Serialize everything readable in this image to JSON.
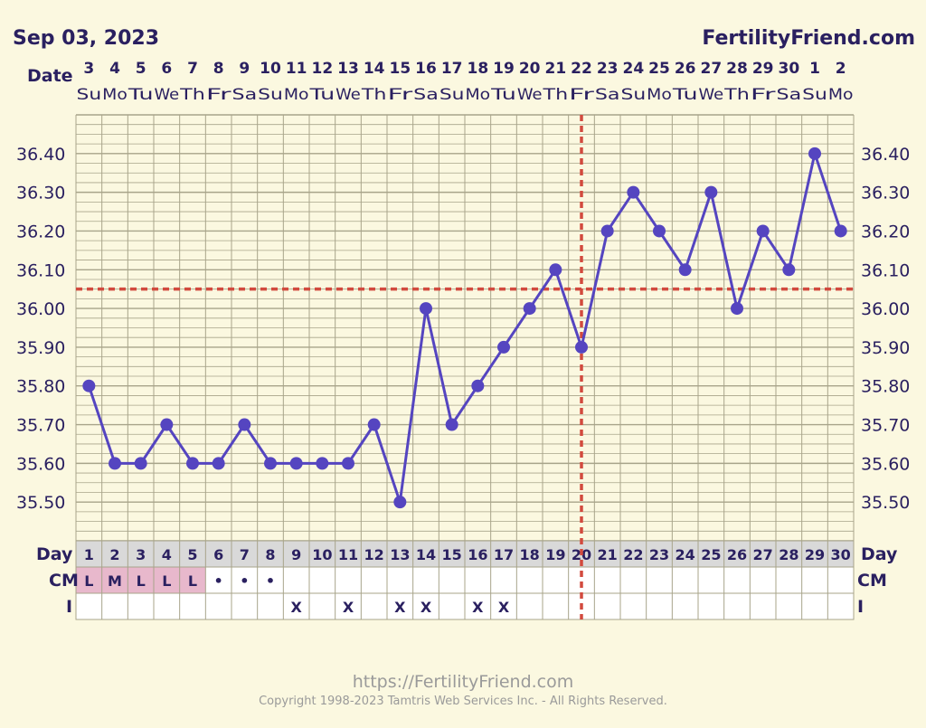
{
  "header": {
    "date_title": "Sep 03, 2023",
    "brand": "FertilityFriend.com",
    "date_row_label": "Date"
  },
  "footer": {
    "url": "https://FertilityFriend.com",
    "copyright": "Copyright 1998-2023 Tamtris Web Services Inc. - All Rights Reserved."
  },
  "row_labels": {
    "day": "Day",
    "cm": "CM",
    "i": "I"
  },
  "colors": {
    "background": "#fbf8e0",
    "line": "#5545c0",
    "coverline": "#d24a3e",
    "grid": "#a8a48a",
    "text": "#2a2060",
    "cm_highlight": "#e8b8cc"
  },
  "chart_data": {
    "type": "line",
    "title": "",
    "xlabel": "",
    "ylabel": "",
    "ylim": [
      35.4,
      36.5
    ],
    "yticks": [
      "35.50",
      "35.60",
      "35.70",
      "35.80",
      "35.90",
      "36.00",
      "36.10",
      "36.20",
      "36.30",
      "36.40"
    ],
    "grid": true,
    "legend": "none",
    "dates": [
      "3",
      "4",
      "5",
      "6",
      "7",
      "8",
      "9",
      "10",
      "11",
      "12",
      "13",
      "14",
      "15",
      "16",
      "17",
      "18",
      "19",
      "20",
      "21",
      "22",
      "23",
      "24",
      "25",
      "26",
      "27",
      "28",
      "29",
      "30",
      "1",
      "2"
    ],
    "weekdays": [
      "Su",
      "Mo",
      "Tu",
      "We",
      "Th",
      "Fr",
      "Sa",
      "Su",
      "Mo",
      "Tu",
      "We",
      "Th",
      "Fr",
      "Sa",
      "Su",
      "Mo",
      "Tu",
      "We",
      "Th",
      "Fr",
      "Sa",
      "Su",
      "Mo",
      "Tu",
      "We",
      "Th",
      "Fr",
      "Sa",
      "Su",
      "Mo"
    ],
    "cycle_days": [
      "1",
      "2",
      "3",
      "4",
      "5",
      "6",
      "7",
      "8",
      "9",
      "10",
      "11",
      "12",
      "13",
      "14",
      "15",
      "16",
      "17",
      "18",
      "19",
      "20",
      "21",
      "22",
      "23",
      "24",
      "25",
      "26",
      "27",
      "28",
      "29",
      "30"
    ],
    "series": [
      {
        "values": [
          35.8,
          35.6,
          35.6,
          35.7,
          35.6,
          35.6,
          35.7,
          35.6,
          35.6,
          35.6,
          35.6,
          35.7,
          35.5,
          36.0,
          35.7,
          35.8,
          35.9,
          36.0,
          36.1,
          35.9,
          36.2,
          36.3,
          36.2,
          36.1,
          36.3,
          36.0,
          36.2,
          36.1,
          36.4,
          36.2
        ]
      }
    ],
    "coverline": 36.05,
    "ovulation_day": 20,
    "cm": [
      "L",
      "M",
      "L",
      "L",
      "L",
      "•",
      "•",
      "•",
      "",
      "",
      "",
      "",
      "",
      "",
      "",
      "",
      "",
      "",
      "",
      "",
      "",
      "",
      "",
      "",
      "",
      "",
      "",
      "",
      "",
      ""
    ],
    "intercourse": [
      "",
      "",
      "",
      "",
      "",
      "",
      "",
      "",
      "X",
      "",
      "X",
      "",
      "X",
      "X",
      "",
      "X",
      "X",
      "",
      "",
      "",
      "",
      "",
      "",
      "",
      "",
      "",
      "",
      "",
      "",
      ""
    ]
  }
}
